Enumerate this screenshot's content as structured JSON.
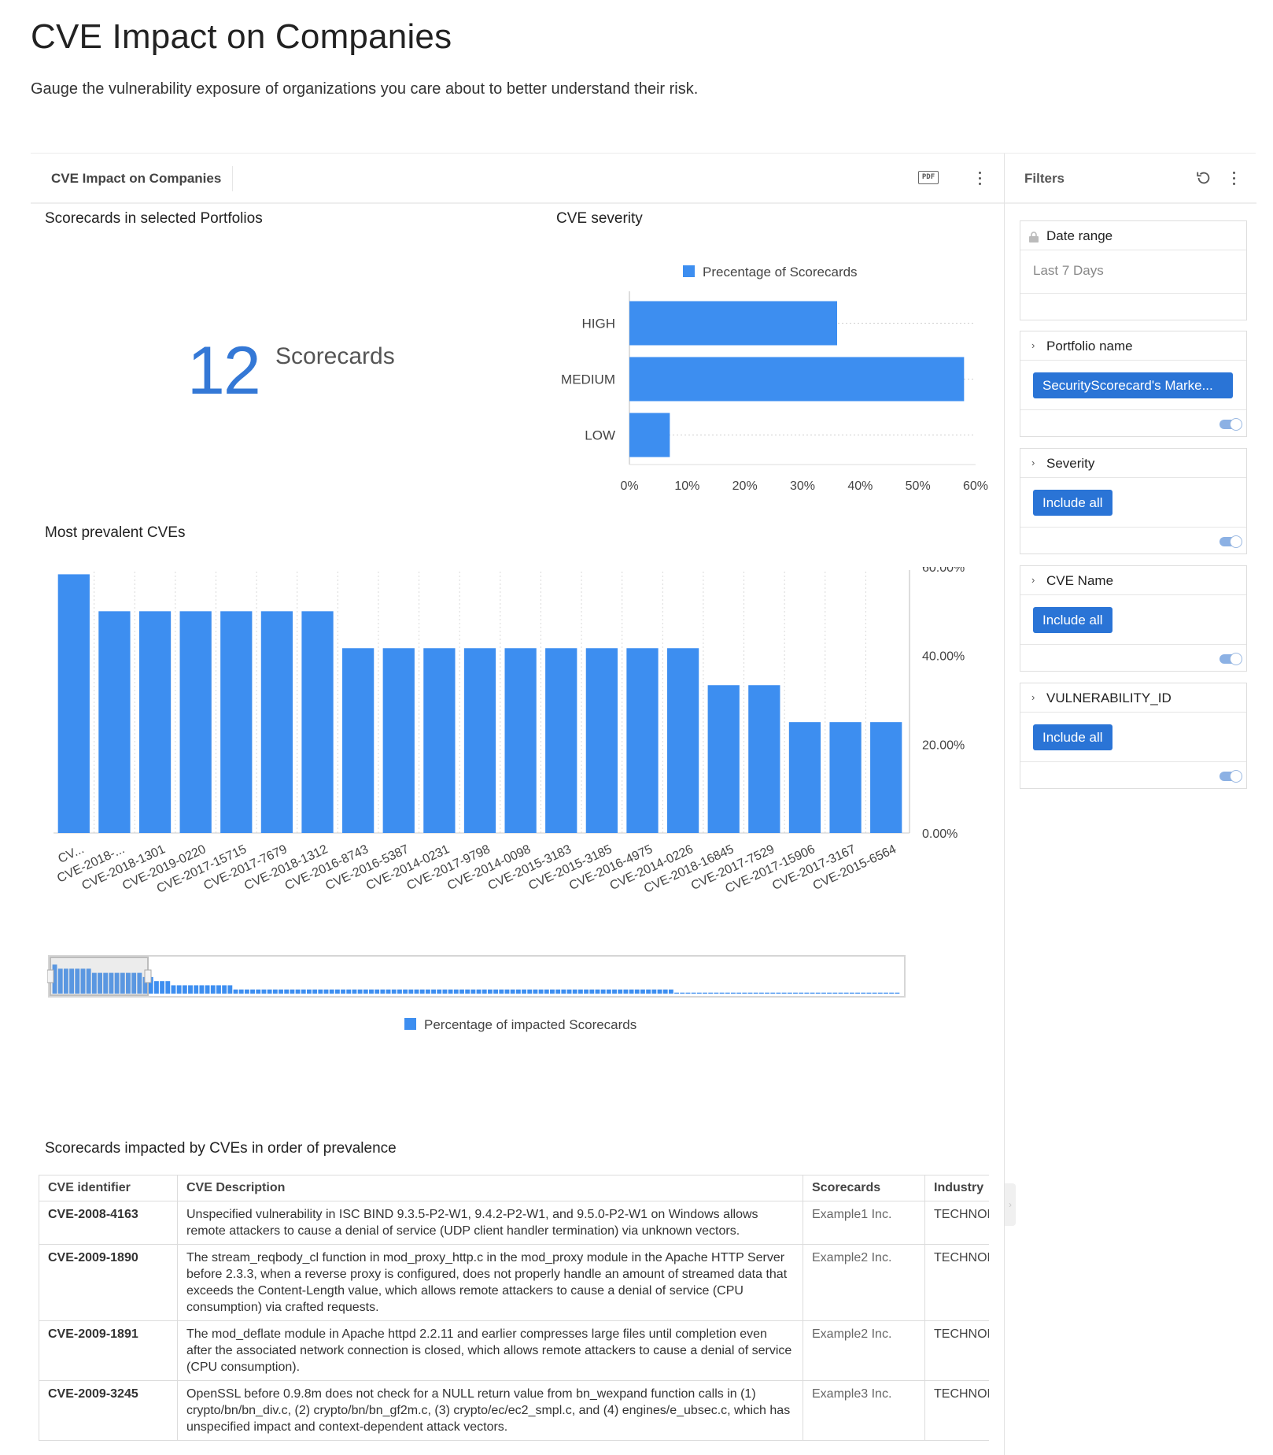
{
  "page": {
    "title": "CVE Impact on Companies",
    "subtitle": "Gauge the vulnerability exposure of organizations you care about to better understand their risk."
  },
  "panel": {
    "title": "CVE Impact on Companies",
    "pdf_label": "PDF"
  },
  "kpi": {
    "title": "Scorecards in selected Portfolios",
    "value": "12",
    "label": "Scorecards"
  },
  "chart_data": [
    {
      "type": "bar",
      "orientation": "horizontal",
      "title": "CVE severity",
      "legend": "Precentage of Scorecards",
      "categories": [
        "HIGH",
        "MEDIUM",
        "LOW"
      ],
      "values": [
        36,
        58,
        7
      ],
      "xlim": [
        0,
        60
      ],
      "x_ticks": [
        "0%",
        "10%",
        "20%",
        "30%",
        "40%",
        "50%",
        "60%"
      ],
      "color": "#3d8ef0"
    },
    {
      "type": "bar",
      "title": "Most prevalent CVEs",
      "legend": "Percentage of impacted Scorecards",
      "categories": [
        "CV...",
        "CVE-2018-...",
        "CVE-2018-1301",
        "CVE-2019-0220",
        "CVE-2017-15715",
        "CVE-2017-7679",
        "CVE-2018-1312",
        "CVE-2016-8743",
        "CVE-2016-5387",
        "CVE-2014-0231",
        "CVE-2017-9798",
        "CVE-2014-0098",
        "CVE-2015-3183",
        "CVE-2015-3185",
        "CVE-2016-4975",
        "CVE-2014-0226",
        "CVE-2018-16845",
        "CVE-2017-7529",
        "CVE-2017-15906",
        "CVE-2017-3167",
        "CVE-2015-6564"
      ],
      "values": [
        58.33,
        50,
        50,
        50,
        50,
        50,
        50,
        41.67,
        41.67,
        41.67,
        41.67,
        41.67,
        41.67,
        41.67,
        41.67,
        41.67,
        33.33,
        33.33,
        25,
        25,
        25
      ],
      "ylim": [
        0,
        60
      ],
      "y_ticks": [
        "0.00%",
        "20.00%",
        "40.00%",
        "60.00%"
      ],
      "color": "#3d8ef0"
    }
  ],
  "table": {
    "title": "Scorecards impacted by CVEs in order of prevalence",
    "columns": [
      "CVE identifier",
      "CVE Description",
      "Scorecards",
      "Industry"
    ],
    "rows": [
      {
        "id": "CVE-2008-4163",
        "desc": "Unspecified vulnerability in ISC BIND 9.3.5-P2-W1, 9.4.2-P2-W1, and 9.5.0-P2-W1 on Windows allows remote attackers to cause a denial of service (UDP client handler termination) via unknown vectors.",
        "scorecard": "Example1 Inc.",
        "industry": "TECHNOLOGY"
      },
      {
        "id": "CVE-2009-1890",
        "desc": "The stream_reqbody_cl function in mod_proxy_http.c in the mod_proxy module in the Apache HTTP Server before 2.3.3, when a reverse proxy is configured, does not properly handle an amount of streamed data that exceeds the Content-Length value, which allows remote attackers to cause a denial of service (CPU consumption) via crafted requests.",
        "scorecard": "Example2 Inc.",
        "industry": "TECHNOLOGY"
      },
      {
        "id": "CVE-2009-1891",
        "desc": "The mod_deflate module in Apache httpd 2.2.11 and earlier compresses large files until completion even after the associated network connection is closed, which allows remote attackers to cause a denial of service (CPU consumption).",
        "scorecard": "Example2 Inc.",
        "industry": "TECHNOLOGY"
      },
      {
        "id": "CVE-2009-3245",
        "desc": "OpenSSL before 0.9.8m does not check for a NULL return value from bn_wexpand function calls in (1) crypto/bn/bn_div.c, (2) crypto/bn/bn_gf2m.c, (3) crypto/ec/ec2_smpl.c, and (4) engines/e_ubsec.c, which has unspecified impact and context-dependent attack vectors.",
        "scorecard": "Example3 Inc.",
        "industry": "TECHNOLOGY"
      }
    ]
  },
  "filters": {
    "title": "Filters",
    "date_range": {
      "label": "Date range",
      "value": "Last 7 Days"
    },
    "portfolio": {
      "label": "Portfolio name",
      "chip": "SecurityScorecard's Marke..."
    },
    "severity": {
      "label": "Severity",
      "chip": "Include all"
    },
    "cve_name": {
      "label": "CVE Name",
      "chip": "Include all"
    },
    "vuln_id": {
      "label": "VULNERABILITY_ID",
      "chip": "Include all"
    }
  }
}
